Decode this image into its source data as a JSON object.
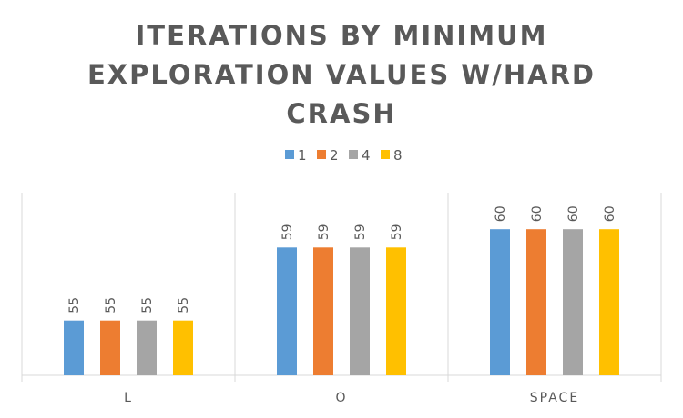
{
  "chart_data": {
    "type": "bar",
    "title_lines": [
      "ITERATIONS BY MINIMUM",
      "EXPLORATION VALUES W/HARD",
      "CRASH"
    ],
    "categories": [
      "L",
      "O",
      "SPACE"
    ],
    "series": [
      {
        "name": "1",
        "values": [
          55,
          59,
          60
        ],
        "color": "#5b9bd5"
      },
      {
        "name": "2",
        "values": [
          55,
          59,
          60
        ],
        "color": "#ed7d31"
      },
      {
        "name": "4",
        "values": [
          55,
          59,
          60
        ],
        "color": "#a5a5a5"
      },
      {
        "name": "8",
        "values": [
          55,
          59,
          60
        ],
        "color": "#ffc000"
      }
    ],
    "data_labels": true,
    "legend_position": "top",
    "ylim": [
      52,
      62
    ],
    "y_axis_visible": false,
    "grid": false,
    "colors": {
      "title": "#595959",
      "labels": "#595959",
      "axis": "#d9d9d9"
    }
  }
}
